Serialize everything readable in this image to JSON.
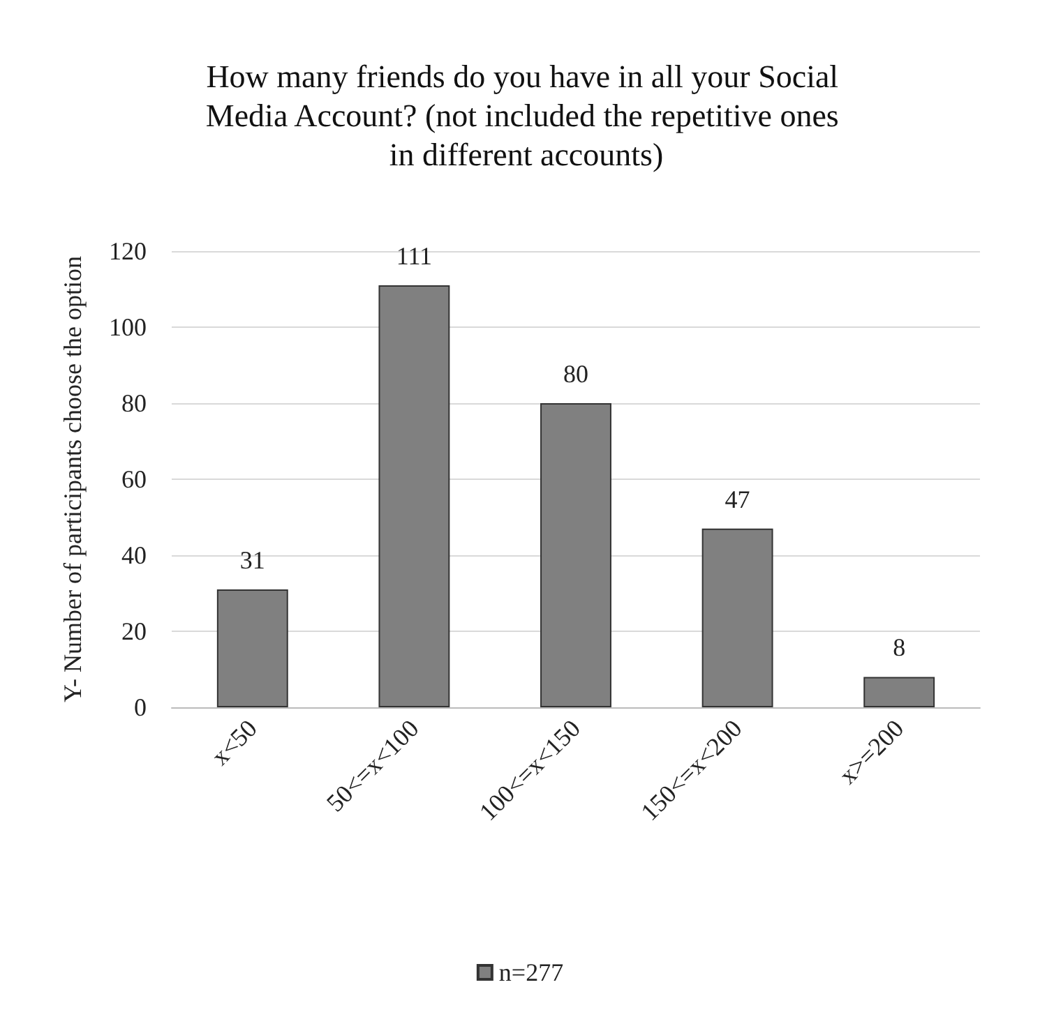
{
  "chart_data": {
    "type": "bar",
    "title": "How many friends do you have in all your Social Media Account? (not included the repetitive ones in different accounts)",
    "ylabel": "Y- Number of participants choose the option",
    "categories": [
      "x<50",
      "50<=x<100",
      "100<=x<150",
      "150<=x<200",
      "x>=200"
    ],
    "series": [
      {
        "name": "n=277",
        "color": "#808080",
        "values": [
          31,
          111,
          80,
          47,
          8
        ]
      }
    ],
    "ylim": [
      0,
      120
    ],
    "yticks": [
      0,
      20,
      40,
      60,
      80,
      100,
      120
    ],
    "grid": "y",
    "legend": "bottom",
    "data_labels": true
  }
}
